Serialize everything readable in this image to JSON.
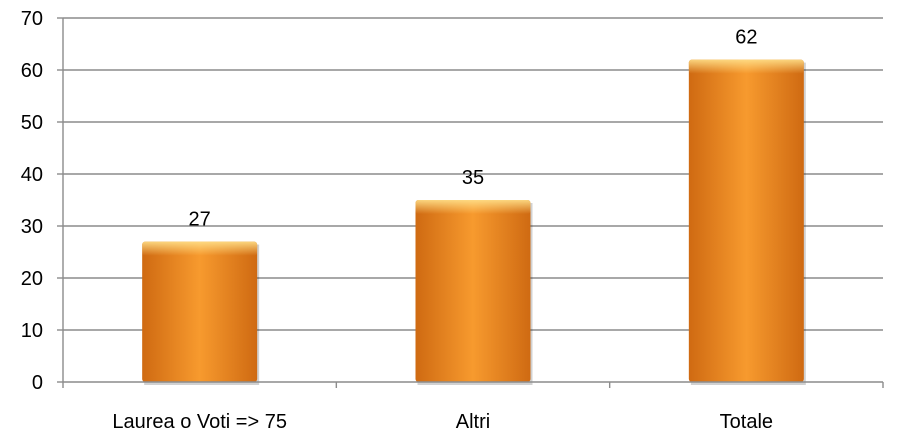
{
  "chart_data": {
    "type": "bar",
    "categories": [
      "Laurea o Voti => 75",
      "Altri",
      "Totale"
    ],
    "values": [
      27,
      35,
      62
    ],
    "data_labels": [
      "27",
      "35",
      "62"
    ],
    "title": "",
    "xlabel": "",
    "ylabel": "",
    "ylim": [
      0,
      70
    ],
    "yticks": [
      0,
      10,
      20,
      30,
      40,
      50,
      60,
      70
    ],
    "ytick_labels": [
      "0",
      "10",
      "20",
      "30",
      "40",
      "50",
      "60",
      "70"
    ],
    "grid": true,
    "legend": "none",
    "colors": {
      "bar_light": "#ffc35a",
      "bar_mid": "#f79a2e",
      "bar_dark": "#cf6a12",
      "gridline": "#8c8c8c",
      "axis": "#8c8c8c"
    }
  }
}
